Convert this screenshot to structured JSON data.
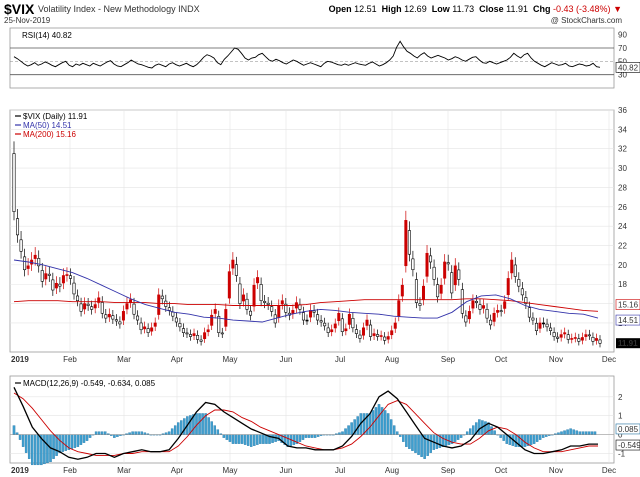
{
  "header": {
    "symbol": "$VIX",
    "name": "Volatility Index - New Methodology",
    "exchange": "INDX",
    "date": "25-Nov-2019",
    "open_label": "Open",
    "open": "12.51",
    "high_label": "High",
    "high": "12.69",
    "low_label": "Low",
    "low": "11.73",
    "close_label": "Close",
    "close": "11.91",
    "chg_label": "Chg",
    "chg": "-0.43 (-3.48%)",
    "chg_arrow": "▼",
    "credit": "@ StockCharts.com",
    "colors": {
      "negative": "#cc0000",
      "up": "#000000",
      "down": "#cc0000"
    }
  },
  "chart_data": [
    {
      "type": "line",
      "panel": "rsi",
      "legend": "RSI(14) 40.82",
      "y_ticks": [
        "30",
        "50",
        "70",
        "90"
      ],
      "ylim": [
        10,
        100
      ],
      "guide_lines": [
        30,
        70
      ],
      "current_label": "40.82",
      "series": [
        {
          "values": [
            57,
            54,
            50,
            46,
            43,
            45,
            48,
            44,
            46,
            49,
            47,
            44,
            42,
            45,
            48,
            50,
            44,
            42,
            46,
            44,
            47,
            45,
            43,
            47,
            45,
            43,
            46,
            49,
            51,
            46,
            43,
            42,
            45,
            48,
            52,
            49,
            46,
            45,
            43,
            41,
            40,
            44,
            46,
            44,
            42,
            46,
            48,
            45,
            43,
            45,
            47,
            44,
            42,
            45,
            50,
            56,
            60,
            58,
            55,
            48,
            45,
            53,
            58,
            64,
            70,
            68,
            62,
            55,
            52,
            55,
            56,
            60,
            62,
            57,
            52,
            50,
            53,
            51,
            48,
            46,
            49,
            52,
            50,
            47,
            44,
            46,
            48,
            46,
            44,
            42,
            47,
            50,
            49,
            47,
            45,
            44,
            46,
            44,
            46,
            48,
            46,
            45,
            44,
            47,
            49,
            46,
            43,
            45,
            48,
            52,
            58,
            71,
            80,
            72,
            65,
            62,
            58,
            55,
            60,
            63,
            58,
            55,
            57,
            59,
            57,
            55,
            52,
            54,
            57,
            55,
            52,
            50,
            53,
            56,
            57,
            52,
            48,
            47,
            50,
            48,
            46,
            48,
            50,
            52,
            56,
            62,
            58,
            55,
            60,
            62,
            55,
            50,
            47,
            44,
            42,
            45,
            48,
            46,
            44,
            45,
            47,
            43,
            42,
            44,
            46,
            45,
            43,
            44,
            47,
            42,
            41
          ]
        }
      ]
    },
    {
      "type": "line",
      "panel": "price",
      "legend": [
        "$VIX (Daily) 11.91",
        "MA(50) 14.51",
        "MA(200) 15.16"
      ],
      "x_labels": [
        "2019",
        "Feb",
        "Mar",
        "Apr",
        "May",
        "Jun",
        "Jul",
        "Aug",
        "Sep",
        "Oct",
        "Nov",
        "Dec"
      ],
      "y_ticks": [
        "14",
        "16",
        "18",
        "20",
        "22",
        "24",
        "26",
        "28",
        "30",
        "32",
        "34",
        "36"
      ],
      "ylim": [
        11,
        36
      ],
      "current_labels": [
        "15.16",
        "14.51",
        "11.91"
      ],
      "series": [
        {
          "name": "$VIX (Daily) 11.91",
          "values": [
            25.5,
            23.1,
            21.4,
            19.5,
            19.9,
            20.5,
            21.0,
            19.9,
            18.3,
            19.1,
            18.9,
            17.4,
            18.1,
            17.8,
            18.9,
            19.0,
            18.6,
            17.0,
            16.3,
            15.2,
            16.0,
            15.8,
            15.4,
            15.9,
            16.6,
            15.0,
            14.5,
            14.9,
            14.4,
            14.2,
            13.9,
            15.2,
            16.0,
            16.4,
            14.9,
            14.3,
            13.3,
            13.6,
            13.0,
            13.5,
            14.0,
            16.9,
            16.5,
            15.7,
            15.3,
            14.7,
            14.1,
            13.6,
            13.0,
            12.9,
            12.6,
            12.9,
            12.3,
            12.1,
            13.0,
            13.3,
            14.8,
            15.4,
            13.0,
            12.9,
            15.4,
            19.3,
            20.5,
            18.9,
            16.0,
            16.9,
            15.4,
            14.8,
            17.9,
            18.7,
            16.3,
            16.1,
            15.9,
            15.2,
            14.0,
            15.8,
            16.3,
            15.1,
            14.8,
            15.3,
            16.1,
            15.4,
            14.3,
            14.3,
            15.3,
            15.1,
            14.3,
            14.1,
            13.7,
            13.0,
            13.3,
            13.9,
            15.0,
            13.1,
            13.4,
            14.9,
            13.5,
            12.9,
            12.4,
            13.5,
            14.3,
            12.6,
            12.9,
            12.6,
            12.7,
            12.2,
            12.6,
            13.2,
            14.0,
            16.3,
            17.9,
            24.6,
            21.1,
            19.5,
            16.1,
            15.8,
            17.8,
            21.2,
            20.3,
            18.5,
            16.7,
            17.9,
            20.3,
            20.1,
            17.1,
            19.9,
            18.5,
            15.0,
            14.1,
            15.2,
            16.3,
            16.1,
            15.4,
            15.8,
            14.5,
            13.8,
            15.0,
            15.3,
            15.2,
            16.2,
            18.6,
            20.5,
            18.8,
            17.8,
            16.9,
            16.0,
            14.6,
            14.3,
            13.2,
            14.0,
            14.0,
            13.6,
            13.2,
            12.6,
            12.4,
            12.8,
            13.0,
            12.3,
            12.4,
            12.5,
            12.1,
            12.5,
            12.8,
            12.7,
            12.1,
            12.4,
            11.9
          ]
        },
        {
          "name": "MA(50) 14.51",
          "values": [
            20.5,
            20.3,
            20.0,
            19.6,
            19.2,
            18.6,
            17.9,
            17.2,
            16.5,
            15.9,
            15.5,
            15.1,
            14.9,
            14.6,
            14.5,
            14.3,
            14.2,
            14.1,
            14.5,
            14.9,
            15.2,
            15.4,
            15.3,
            15.1,
            15.0,
            14.9,
            14.7,
            14.6,
            14.5,
            14.5,
            15.1,
            16.2,
            16.8,
            16.9,
            16.5,
            15.8,
            15.4,
            15.2,
            15.0,
            14.9,
            14.5
          ]
        },
        {
          "name": "MA(200) 15.16",
          "values": [
            16.2,
            16.3,
            16.3,
            16.3,
            16.2,
            16.2,
            16.2,
            16.1,
            16.1,
            16.1,
            16.0,
            16.0,
            15.9,
            15.9,
            15.9,
            15.8,
            15.8,
            15.8,
            15.8,
            15.8,
            15.9,
            16.1,
            16.2,
            16.3,
            16.4,
            16.4,
            16.4,
            16.4,
            16.4,
            16.4,
            16.4,
            16.5,
            16.5,
            16.4,
            16.3,
            16.1,
            15.9,
            15.7,
            15.5,
            15.3,
            15.2
          ]
        }
      ]
    },
    {
      "type": "line",
      "panel": "macd",
      "legend": "MACD(12,26,9) -0.549, -0.634, 0.085",
      "x_labels": [
        "2019",
        "Feb",
        "Mar",
        "Apr",
        "May",
        "Jun",
        "Jul",
        "Aug",
        "Sep",
        "Oct",
        "Nov",
        "Dec"
      ],
      "y_ticks": [
        "-1",
        "0",
        "1",
        "2"
      ],
      "ylim": [
        -1.5,
        3.1
      ],
      "current_labels": [
        "0.085",
        "-0.549"
      ],
      "series": [
        {
          "name": "MACD",
          "values": [
            2.5,
            1.5,
            0.4,
            -0.2,
            -0.7,
            -0.9,
            -1.2,
            -1.3,
            -1.2,
            -1.0,
            -1.0,
            -1.2,
            -1.0,
            -0.9,
            -0.8,
            -0.9,
            -0.9,
            -0.8,
            -0.2,
            0.5,
            1.2,
            1.7,
            1.6,
            1.2,
            0.9,
            0.6,
            0.3,
            0.1,
            -0.1,
            -0.2,
            -0.6,
            -0.7,
            -0.7,
            -0.8,
            -0.8,
            -0.8,
            -0.6,
            -0.1,
            0.6,
            1.1,
            2.0,
            2.3,
            1.9,
            1.2,
            0.5,
            -0.2,
            -0.4,
            -0.6,
            -0.7,
            -0.6,
            -0.3,
            0.3,
            0.6,
            0.4,
            0.0,
            -0.4,
            -0.8,
            -1.0,
            -1.0,
            -0.9,
            -0.8,
            -0.6,
            -0.6,
            -0.5,
            -0.5
          ]
        },
        {
          "name": "Signal",
          "values": [
            2.2,
            1.9,
            1.4,
            0.8,
            0.2,
            -0.3,
            -0.7,
            -0.9,
            -1.0,
            -1.1,
            -1.1,
            -1.1,
            -1.0,
            -1.0,
            -0.9,
            -0.9,
            -0.9,
            -0.9,
            -0.6,
            -0.1,
            0.5,
            1.0,
            1.3,
            1.3,
            1.2,
            0.9,
            0.7,
            0.4,
            0.2,
            0.0,
            -0.2,
            -0.4,
            -0.6,
            -0.7,
            -0.8,
            -0.8,
            -0.7,
            -0.5,
            -0.1,
            0.4,
            1.0,
            1.6,
            1.8,
            1.6,
            1.1,
            0.6,
            0.1,
            -0.2,
            -0.4,
            -0.5,
            -0.5,
            -0.2,
            0.2,
            0.4,
            0.3,
            0.0,
            -0.4,
            -0.7,
            -0.9,
            -0.9,
            -0.9,
            -0.8,
            -0.7,
            -0.6,
            -0.6
          ]
        }
      ]
    }
  ]
}
